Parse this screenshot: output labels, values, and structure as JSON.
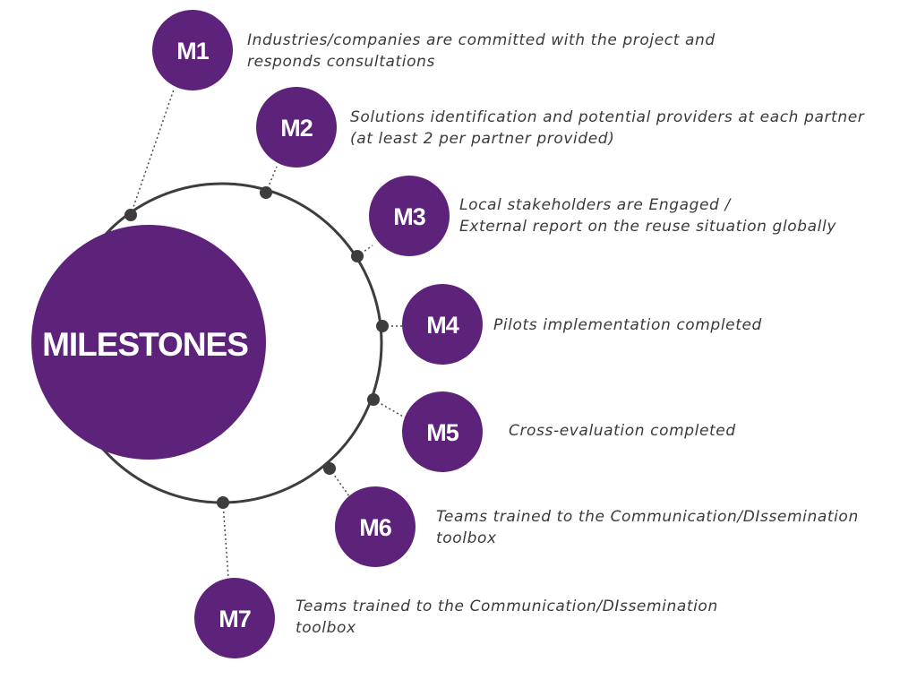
{
  "center": {
    "label": "MILESTONES"
  },
  "colors": {
    "node": "#5d237a",
    "ring": "#3d3d3d",
    "text": "#3a3a3a"
  },
  "milestones": [
    {
      "id": "M1",
      "lines": [
        "Industries/companies are committed with the project and",
        "responds consultations"
      ]
    },
    {
      "id": "M2",
      "lines": [
        "Solutions identification and potential providers at each partner",
        "(at least 2 per partner provided)"
      ]
    },
    {
      "id": "M3",
      "lines": [
        "Local stakeholders are  Engaged /",
        "External report on the reuse situation globally"
      ]
    },
    {
      "id": "M4",
      "lines": [
        "Pilots implementation completed"
      ]
    },
    {
      "id": "M5",
      "lines": [
        "Cross-evaluation completed"
      ]
    },
    {
      "id": "M6",
      "lines": [
        "Teams trained to the Communication/DIssemination",
        "toolbox"
      ]
    },
    {
      "id": "M7",
      "lines": [
        "Teams trained to the Communication/DIssemination",
        "toolbox"
      ]
    }
  ]
}
